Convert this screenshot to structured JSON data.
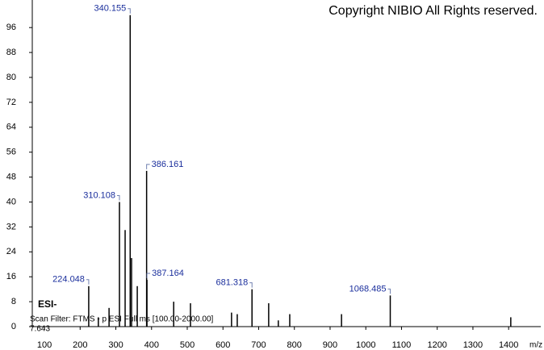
{
  "chart_data": {
    "type": "stem",
    "title": "Copyright NIBIO All Rights reserved.",
    "ion_mode": "ESI-",
    "scan_filter": "Scan Filter: FTMS - p ESI Full ms [100.00-2000.00]",
    "retention_time": "7.643",
    "x_label": "m/z",
    "color": "#000000",
    "label_color": "#1a2e9c",
    "x": [
      224.048,
      251,
      281,
      310.108,
      326,
      340.155,
      344,
      360,
      386.161,
      387.164,
      462,
      509,
      624,
      640,
      681.318,
      728,
      755,
      787,
      932,
      1068.485,
      1406
    ],
    "values": [
      13,
      3,
      6,
      40,
      31,
      100,
      22,
      13,
      50,
      15,
      8,
      7.5,
      4.5,
      4,
      12,
      7.5,
      2,
      4,
      4,
      10,
      3
    ],
    "point_labels": [
      "224.048",
      null,
      null,
      "310.108",
      null,
      "340.155",
      null,
      null,
      "386.161",
      "387.164",
      null,
      null,
      null,
      null,
      "681.318",
      null,
      null,
      null,
      null,
      "1068.485",
      null
    ],
    "xlim": [
      66,
      1490
    ],
    "ylim": [
      0,
      102
    ],
    "xticks": [
      100,
      200,
      300,
      400,
      500,
      600,
      700,
      800,
      900,
      1000,
      1100,
      1200,
      1300,
      1400
    ],
    "yticks": [
      0,
      8,
      16,
      24,
      32,
      40,
      48,
      56,
      64,
      72,
      80,
      88,
      96
    ]
  }
}
